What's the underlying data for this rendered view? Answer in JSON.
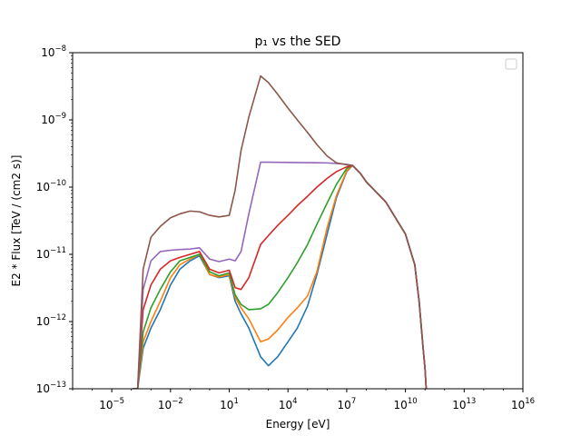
{
  "chart_data": {
    "type": "line",
    "title": "p₁ vs the SED",
    "xlabel": "Energy [eV]",
    "ylabel": "E2 * Flux [TeV / (cm2 s)]",
    "xscale": "log",
    "yscale": "log",
    "xlim": [
      1e-07,
      1e+16
    ],
    "ylim": [
      1e-13,
      1e-08
    ],
    "x_ticks": [
      {
        "value": 1e-05,
        "base": "10",
        "exp": "−5"
      },
      {
        "value": 0.01,
        "base": "10",
        "exp": "−2"
      },
      {
        "value": 10.0,
        "base": "10",
        "exp": "1"
      },
      {
        "value": 10000.0,
        "base": "10",
        "exp": "4"
      },
      {
        "value": 10000000.0,
        "base": "10",
        "exp": "7"
      },
      {
        "value": 10000000000.0,
        "base": "10",
        "exp": "10"
      },
      {
        "value": 10000000000000.0,
        "base": "10",
        "exp": "13"
      },
      {
        "value": 1e+16,
        "base": "10",
        "exp": "16"
      }
    ],
    "y_ticks": [
      {
        "value": 1e-13,
        "base": "10",
        "exp": "−13"
      },
      {
        "value": 1e-12,
        "base": "10",
        "exp": "−12"
      },
      {
        "value": 1e-11,
        "base": "10",
        "exp": "−11"
      },
      {
        "value": 1e-10,
        "base": "10",
        "exp": "−10"
      },
      {
        "value": 1e-09,
        "base": "10",
        "exp": "−9"
      },
      {
        "value": 1e-08,
        "base": "10",
        "exp": "−8"
      }
    ],
    "legend": {
      "placement": "upper right",
      "entries": []
    },
    "grid": false,
    "colors": [
      "#1f77b4",
      "#ff7f0e",
      "#2ca02c",
      "#d62728",
      "#9467bd",
      "#8c564b"
    ],
    "series": [
      {
        "color": "#1f77b4",
        "x": [
          0.00012,
          0.00021,
          0.0004,
          0.001,
          0.003,
          0.01,
          0.03,
          0.1,
          0.3,
          1,
          3,
          10,
          20,
          40,
          100,
          400,
          1000,
          3000,
          10000,
          30000,
          100000,
          300000,
          1000000,
          3000000,
          10000000,
          20000000,
          50000000,
          100000000,
          1000000000.0,
          10000000000.0,
          30000000000.0,
          50000000000.0,
          80000000000.0,
          100000000000.0,
          115000000000.0,
          120000000000.0
        ],
        "y": [
          1e-13,
          1e-13,
          4e-13,
          8e-13,
          1.5e-12,
          3.5e-12,
          6e-12,
          8e-12,
          9.5e-12,
          5e-12,
          4.5e-12,
          4.8e-12,
          2e-12,
          1.3e-12,
          8e-13,
          3e-13,
          2.2e-13,
          3e-13,
          5e-13,
          8e-13,
          1.7e-12,
          5e-12,
          2e-11,
          7e-11,
          1.7e-10,
          2.1e-10,
          1.6e-10,
          1.2e-10,
          6e-11,
          2e-11,
          7e-12,
          2e-12,
          4e-13,
          2e-13,
          1e-13,
          1e-13
        ]
      },
      {
        "color": "#ff7f0e",
        "x": [
          0.00012,
          0.00021,
          0.0004,
          0.001,
          0.003,
          0.01,
          0.03,
          0.1,
          0.3,
          1,
          3,
          10,
          20,
          40,
          100,
          400,
          1000,
          3000,
          10000,
          30000,
          100000,
          300000,
          1000000,
          3000000,
          10000000,
          20000000,
          50000000,
          100000000,
          1000000000.0,
          10000000000.0,
          30000000000.0,
          50000000000.0,
          80000000000.0,
          100000000000.0,
          115000000000.0,
          120000000000.0
        ],
        "y": [
          1e-13,
          1e-13,
          5e-13,
          1e-12,
          2e-12,
          4.5e-12,
          7e-12,
          8.5e-12,
          1e-11,
          5e-12,
          4.6e-12,
          5e-12,
          2.3e-12,
          1.6e-12,
          1.1e-12,
          5e-13,
          5.5e-13,
          7.5e-13,
          1.15e-12,
          1.6e-12,
          2.4e-12,
          5.5e-12,
          2.5e-11,
          7.5e-11,
          1.75e-10,
          2.1e-10,
          1.6e-10,
          1.2e-10,
          6e-11,
          2e-11,
          7e-12,
          2e-12,
          4e-13,
          2e-13,
          1e-13,
          1e-13
        ]
      },
      {
        "color": "#2ca02c",
        "x": [
          0.00012,
          0.00021,
          0.0004,
          0.001,
          0.003,
          0.01,
          0.03,
          0.1,
          0.3,
          1,
          3,
          10,
          20,
          40,
          100,
          400,
          1000,
          3000,
          10000,
          30000,
          100000,
          300000,
          1000000,
          3000000,
          10000000,
          20000000,
          50000000,
          100000000,
          1000000000.0,
          10000000000.0,
          30000000000.0,
          50000000000.0,
          80000000000.0,
          100000000000.0,
          115000000000.0,
          120000000000.0
        ],
        "y": [
          1e-13,
          1e-13,
          7e-13,
          1.6e-12,
          3e-12,
          5.5e-12,
          8e-12,
          9e-12,
          1e-11,
          5.5e-12,
          4.8e-12,
          5.3e-12,
          2.5e-12,
          1.8e-12,
          1.5e-12,
          1.55e-12,
          1.8e-12,
          2.7e-12,
          4.5e-12,
          7.5e-12,
          1.4e-11,
          2.8e-11,
          5.8e-11,
          1.1e-10,
          1.9e-10,
          2.1e-10,
          1.6e-10,
          1.2e-10,
          6e-11,
          2e-11,
          7e-12,
          2e-12,
          4e-13,
          2e-13,
          1e-13,
          1e-13
        ]
      },
      {
        "color": "#d62728",
        "x": [
          0.00012,
          0.00021,
          0.0004,
          0.001,
          0.003,
          0.01,
          0.03,
          0.1,
          0.3,
          1,
          3,
          10,
          20,
          40,
          100,
          400,
          1000,
          3000,
          10000,
          30000,
          100000,
          300000,
          1000000,
          3000000,
          10000000,
          20000000,
          50000000,
          100000000,
          1000000000.0,
          10000000000.0,
          30000000000.0,
          50000000000.0,
          80000000000.0,
          100000000000.0,
          115000000000.0,
          120000000000.0
        ],
        "y": [
          1e-13,
          1e-13,
          1.5e-12,
          3.5e-12,
          6e-12,
          8e-12,
          9e-12,
          1e-11,
          1.1e-11,
          6e-12,
          5.3e-12,
          5.8e-12,
          3.2e-12,
          3e-12,
          4.5e-12,
          1.4e-11,
          1.9e-11,
          2.7e-11,
          3.8e-11,
          5.3e-11,
          7.3e-11,
          1e-10,
          1.35e-10,
          1.7e-10,
          2e-10,
          2.1e-10,
          1.6e-10,
          1.2e-10,
          6e-11,
          2e-11,
          7e-12,
          2e-12,
          4e-13,
          2e-13,
          1e-13,
          1e-13
        ]
      },
      {
        "color": "#9467bd",
        "x": [
          0.00012,
          0.00021,
          0.0004,
          0.001,
          0.003,
          0.01,
          0.03,
          0.1,
          0.3,
          1,
          3,
          10,
          20,
          40,
          100,
          400,
          1000,
          3000,
          10000,
          30000,
          100000,
          300000,
          1000000,
          3000000,
          10000000,
          20000000,
          50000000,
          100000000,
          1000000000.0,
          10000000000.0,
          30000000000.0,
          50000000000.0,
          80000000000.0,
          100000000000.0,
          115000000000.0,
          120000000000.0
        ],
        "y": [
          1e-13,
          1e-13,
          3e-12,
          8e-12,
          1.1e-11,
          1.15e-11,
          1.18e-11,
          1.2e-11,
          1.25e-11,
          8.5e-12,
          7.8e-12,
          8.5e-12,
          8e-12,
          1.1e-11,
          4e-11,
          2.35e-10,
          2.35e-10,
          2.34e-10,
          2.33e-10,
          2.32e-10,
          2.31e-10,
          2.3e-10,
          2.29e-10,
          2.25e-10,
          2.18e-10,
          2.1e-10,
          1.6e-10,
          1.2e-10,
          6e-11,
          2e-11,
          7e-12,
          2e-12,
          4e-13,
          2e-13,
          1e-13,
          1e-13
        ]
      },
      {
        "color": "#8c564b",
        "x": [
          0.00012,
          0.00021,
          0.0004,
          0.001,
          0.003,
          0.01,
          0.03,
          0.1,
          0.3,
          1,
          3,
          10,
          20,
          40,
          100,
          400,
          1000,
          3000,
          10000,
          30000,
          100000,
          300000,
          1000000,
          3000000,
          10000000,
          20000000,
          50000000,
          100000000,
          1000000000.0,
          10000000000.0,
          30000000000.0,
          50000000000.0,
          80000000000.0,
          100000000000.0,
          115000000000.0,
          120000000000.0
        ],
        "y": [
          1e-13,
          1e-13,
          6e-12,
          1.8e-11,
          2.6e-11,
          3.5e-11,
          4e-11,
          4.4e-11,
          4.3e-11,
          3.8e-11,
          3.6e-11,
          3.8e-11,
          9e-11,
          3.5e-10,
          1.1e-09,
          4.5e-09,
          3.6e-09,
          2.4e-09,
          1.5e-09,
          1e-09,
          6.5e-10,
          4.3e-10,
          2.9e-10,
          2.3e-10,
          2.15e-10,
          2.1e-10,
          1.6e-10,
          1.2e-10,
          6e-11,
          2e-11,
          7e-12,
          2e-12,
          4e-13,
          2e-13,
          1e-13,
          1e-13
        ]
      }
    ]
  }
}
